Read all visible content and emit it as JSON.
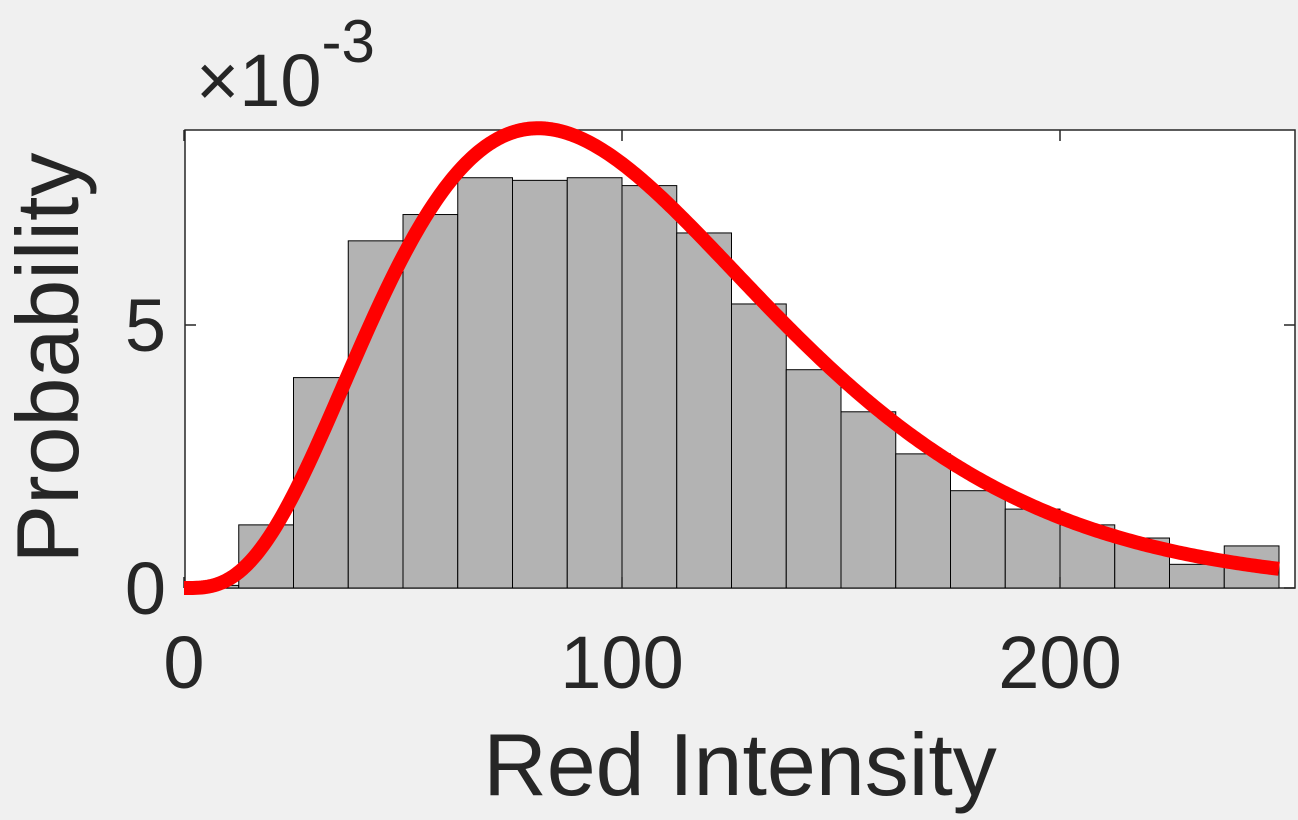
{
  "chart_data": {
    "type": "bar",
    "xlabel": "Red Intensity",
    "ylabel": "Probability",
    "y_exponent_prefix": "×10",
    "y_exponent_power": "-3",
    "xlim": [
      0,
      250
    ],
    "ylim": [
      0,
      8.8
    ],
    "xticks": [
      0,
      100,
      200
    ],
    "xtick_labels": [
      "0",
      "100",
      "200"
    ],
    "yticks": [
      0,
      5
    ],
    "ytick_labels": [
      "0",
      "5"
    ],
    "bin_width": 12.5,
    "bins": [
      {
        "start": 0,
        "value": 0.05
      },
      {
        "start": 12.5,
        "value": 1.2
      },
      {
        "start": 25,
        "value": 4.0
      },
      {
        "start": 37.5,
        "value": 6.6
      },
      {
        "start": 50,
        "value": 7.1
      },
      {
        "start": 62.5,
        "value": 7.8
      },
      {
        "start": 75,
        "value": 7.75
      },
      {
        "start": 87.5,
        "value": 7.8
      },
      {
        "start": 100,
        "value": 7.65
      },
      {
        "start": 112.5,
        "value": 6.75
      },
      {
        "start": 125,
        "value": 5.4
      },
      {
        "start": 137.5,
        "value": 4.15
      },
      {
        "start": 150,
        "value": 3.35
      },
      {
        "start": 162.5,
        "value": 2.55
      },
      {
        "start": 175,
        "value": 1.85
      },
      {
        "start": 187.5,
        "value": 1.5
      },
      {
        "start": 200,
        "value": 1.2
      },
      {
        "start": 212.5,
        "value": 0.95
      },
      {
        "start": 225,
        "value": 0.45
      },
      {
        "start": 237.5,
        "value": 0.8
      }
    ],
    "fit_curve": {
      "type": "gamma_pdf",
      "shape": 4.3,
      "scale": 24.5,
      "color": "#ff0000"
    },
    "bar_color": "#b3b3b3",
    "grid": false
  }
}
